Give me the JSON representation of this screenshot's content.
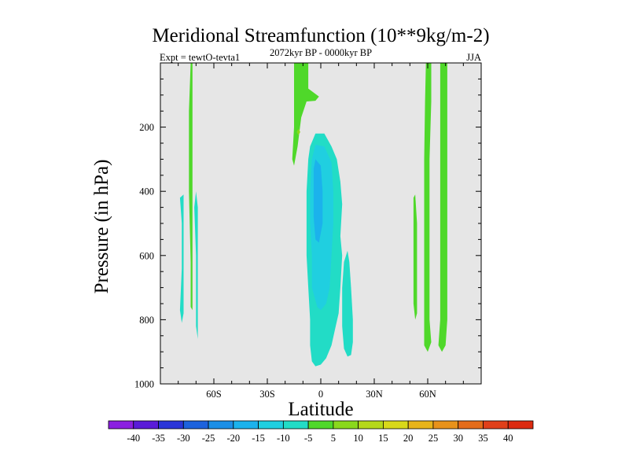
{
  "chart_data": {
    "type": "filled-contour",
    "title": "Meridional Streamfunction (10**9kg/m-2)",
    "subtitle_center": "2072kyr BP - 0000kyr BP",
    "subtitle_left": "Expt = tewtO-tevta1",
    "subtitle_right": "JJA",
    "xlabel": "Latitude",
    "ylabel": "Pressure (in hPa)",
    "xlim": [
      -90,
      90
    ],
    "ylim": [
      1000,
      0
    ],
    "x_ticks": [
      {
        "value": -60,
        "label": "60S"
      },
      {
        "value": -30,
        "label": "30S"
      },
      {
        "value": 0,
        "label": "0"
      },
      {
        "value": 30,
        "label": "30N"
      },
      {
        "value": 60,
        "label": "60N"
      }
    ],
    "y_ticks": [
      {
        "value": 200,
        "label": "200"
      },
      {
        "value": 400,
        "label": "400"
      },
      {
        "value": 600,
        "label": "600"
      },
      {
        "value": 800,
        "label": "800"
      },
      {
        "value": 1000,
        "label": "1000"
      }
    ],
    "background_color": "#e6e6e6",
    "colorbar": {
      "levels": [
        "-40",
        "-35",
        "-30",
        "-25",
        "-20",
        "-15",
        "-10",
        "-5",
        "5",
        "10",
        "15",
        "20",
        "25",
        "30",
        "35",
        "40"
      ],
      "colors": [
        "#8b1fe0",
        "#5a1cd8",
        "#2a35d8",
        "#1d62dd",
        "#1c8fe6",
        "#1bb2ec",
        "#20cfe0",
        "#22dcc6",
        "#4fd82a",
        "#8ad81c",
        "#b5d81a",
        "#d8d81a",
        "#e8b41a",
        "#e8921a",
        "#e46c1a",
        "#e0401a",
        "#dc2a10"
      ]
    },
    "regions": [
      {
        "name": "sh-high-negative-a",
        "level": "-10 to -5",
        "color": "#22dcc6",
        "outline": [
          [
            -79,
            420
          ],
          [
            -78,
            500
          ],
          [
            -78,
            640
          ],
          [
            -79,
            770
          ],
          [
            -78,
            810
          ],
          [
            -77,
            780
          ],
          [
            -77,
            640
          ],
          [
            -77,
            500
          ],
          [
            -77,
            410
          ]
        ]
      },
      {
        "name": "sh-high-positive",
        "level": "5 to 10",
        "color": "#4fd82a",
        "outline": [
          [
            -73,
            0
          ],
          [
            -72,
            0
          ],
          [
            -72,
            150
          ],
          [
            -72,
            400
          ],
          [
            -72,
            620
          ],
          [
            -72,
            750
          ],
          [
            -72,
            770
          ],
          [
            -73,
            760
          ],
          [
            -73,
            620
          ],
          [
            -74,
            400
          ],
          [
            -74,
            150
          ]
        ]
      },
      {
        "name": "sh-high-negative-b",
        "level": "-10 to -5",
        "color": "#22dcc6",
        "outline": [
          [
            -70,
            400
          ],
          [
            -69,
            450
          ],
          [
            -69,
            600
          ],
          [
            -69,
            780
          ],
          [
            -69,
            860
          ],
          [
            -70,
            820
          ],
          [
            -70,
            600
          ],
          [
            -71,
            450
          ]
        ]
      },
      {
        "name": "tropical-upper-positive",
        "level": "5 to 10",
        "color": "#4fd82a",
        "outline": [
          [
            -15,
            0
          ],
          [
            -7,
            0
          ],
          [
            -7,
            80
          ],
          [
            -1,
            105
          ],
          [
            -3,
            118
          ],
          [
            -8,
            120
          ],
          [
            -11,
            170
          ],
          [
            -13,
            260
          ],
          [
            -15,
            320
          ],
          [
            -16,
            300
          ],
          [
            -15,
            200
          ],
          [
            -15,
            100
          ]
        ]
      },
      {
        "name": "tropical-upper-positive-core",
        "level": "10 to 15",
        "color": "#8ad81c",
        "outline": [
          [
            -12.5,
            205
          ],
          [
            -11.5,
            215
          ],
          [
            -12.5,
            225
          ],
          [
            -13.5,
            215
          ]
        ]
      },
      {
        "name": "hadley-negative-outer",
        "level": "-10 to -5",
        "color": "#22dcc6",
        "outline": [
          [
            -3,
            220
          ],
          [
            2,
            220
          ],
          [
            6,
            260
          ],
          [
            9,
            300
          ],
          [
            11,
            370
          ],
          [
            12,
            440
          ],
          [
            11,
            540
          ],
          [
            12,
            600
          ],
          [
            11,
            700
          ],
          [
            10,
            780
          ],
          [
            8,
            830
          ],
          [
            6,
            880
          ],
          [
            3,
            920
          ],
          [
            0,
            940
          ],
          [
            -3,
            945
          ],
          [
            -5,
            930
          ],
          [
            -6,
            880
          ],
          [
            -6,
            800
          ],
          [
            -7,
            700
          ],
          [
            -8,
            600
          ],
          [
            -8,
            500
          ],
          [
            -8,
            400
          ],
          [
            -7,
            300
          ],
          [
            -6,
            260
          ]
        ]
      },
      {
        "name": "hadley-negative-lobe",
        "level": "-10 to -5",
        "color": "#22dcc6",
        "outline": [
          [
            16,
            620
          ],
          [
            17,
            700
          ],
          [
            18,
            800
          ],
          [
            18,
            870
          ],
          [
            17,
            910
          ],
          [
            15,
            915
          ],
          [
            13,
            890
          ],
          [
            12,
            820
          ],
          [
            12,
            700
          ],
          [
            13,
            620
          ],
          [
            15,
            585
          ]
        ]
      },
      {
        "name": "hadley-negative-mid",
        "level": "-15 to -10",
        "color": "#20cfe0",
        "outline": [
          [
            -3,
            255
          ],
          [
            2,
            260
          ],
          [
            6,
            310
          ],
          [
            7,
            400
          ],
          [
            7,
            500
          ],
          [
            6,
            600
          ],
          [
            5,
            700
          ],
          [
            3,
            750
          ],
          [
            0,
            770
          ],
          [
            -2,
            760
          ],
          [
            -5,
            700
          ],
          [
            -5,
            600
          ],
          [
            -6,
            500
          ],
          [
            -6,
            400
          ],
          [
            -5,
            300
          ]
        ]
      },
      {
        "name": "hadley-negative-core",
        "level": "-20 to -15",
        "color": "#1bb2ec",
        "outline": [
          [
            -3,
            300
          ],
          [
            0,
            320
          ],
          [
            1,
            400
          ],
          [
            1,
            500
          ],
          [
            -1,
            560
          ],
          [
            -3,
            550
          ],
          [
            -4,
            480
          ],
          [
            -4,
            400
          ],
          [
            -4,
            330
          ]
        ]
      },
      {
        "name": "nh-positive-a",
        "level": "5 to 10",
        "color": "#4fd82a",
        "outline": [
          [
            53,
            410
          ],
          [
            54,
            500
          ],
          [
            54,
            600
          ],
          [
            54,
            700
          ],
          [
            54,
            780
          ],
          [
            53,
            800
          ],
          [
            52,
            750
          ],
          [
            52,
            600
          ],
          [
            52,
            500
          ],
          [
            52,
            420
          ]
        ]
      },
      {
        "name": "nh-positive-b",
        "level": "5 to 10",
        "color": "#4fd82a",
        "outline": [
          [
            59,
            0
          ],
          [
            62,
            0
          ],
          [
            62,
            120
          ],
          [
            61,
            300
          ],
          [
            61,
            600
          ],
          [
            61,
            800
          ],
          [
            62,
            870
          ],
          [
            60,
            900
          ],
          [
            58,
            880
          ],
          [
            58,
            800
          ],
          [
            58,
            600
          ],
          [
            58,
            300
          ],
          [
            58.5,
            120
          ]
        ]
      },
      {
        "name": "nh-positive-c",
        "level": "5 to 10",
        "color": "#4fd82a",
        "outline": [
          [
            67,
            0
          ],
          [
            71,
            0
          ],
          [
            71,
            100
          ],
          [
            71,
            400
          ],
          [
            71,
            800
          ],
          [
            70,
            880
          ],
          [
            68,
            900
          ],
          [
            66,
            880
          ],
          [
            67,
            800
          ],
          [
            67,
            400
          ],
          [
            67,
            100
          ]
        ]
      }
    ]
  }
}
